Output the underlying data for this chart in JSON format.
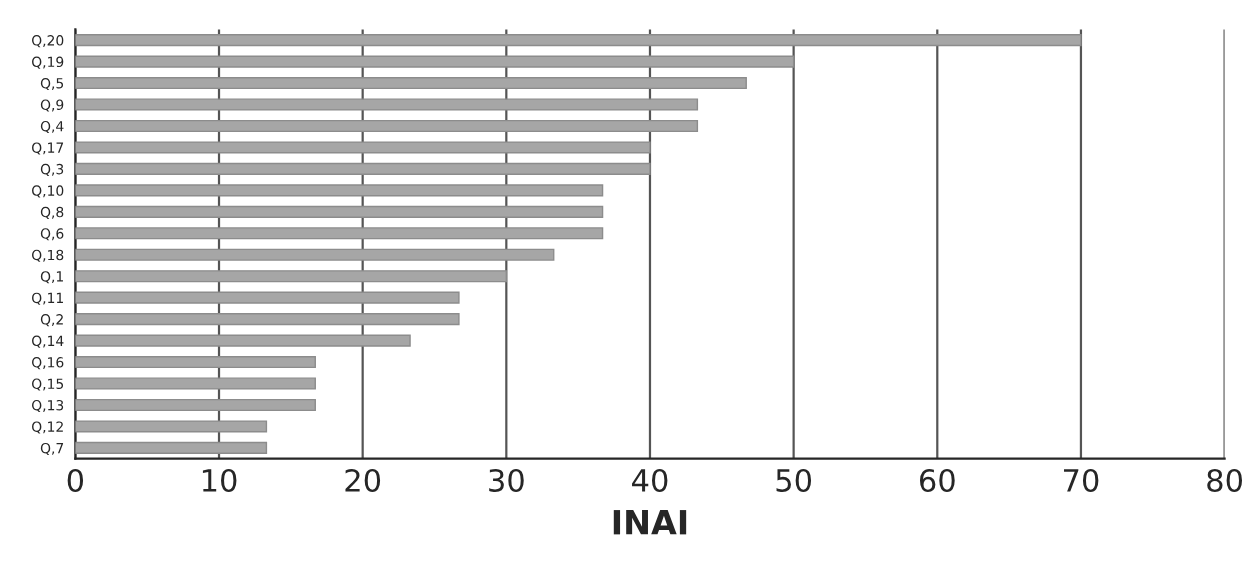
{
  "chart_data": {
    "type": "bar",
    "orientation": "horizontal",
    "xlabel": "INAI",
    "categories": [
      "Q,20",
      "Q,19",
      "Q,5",
      "Q,9",
      "Q,4",
      "Q,17",
      "Q,3",
      "Q,10",
      "Q,8",
      "Q,6",
      "Q,18",
      "Q,1",
      "Q,11",
      "Q,2",
      "Q,14",
      "Q,16",
      "Q,15",
      "Q,13",
      "Q,12",
      "Q,7"
    ],
    "values": [
      70,
      50,
      46.7,
      43.3,
      43.3,
      40,
      40,
      36.7,
      36.7,
      36.7,
      33.3,
      30,
      26.7,
      26.7,
      23.3,
      16.7,
      16.7,
      16.7,
      13.3,
      13.3
    ],
    "color": "#a6a6a6",
    "xlim": [
      0,
      80
    ],
    "xticks": [
      0,
      10,
      20,
      30,
      40,
      50,
      60,
      70,
      80
    ],
    "grid": "x",
    "legend": false
  }
}
